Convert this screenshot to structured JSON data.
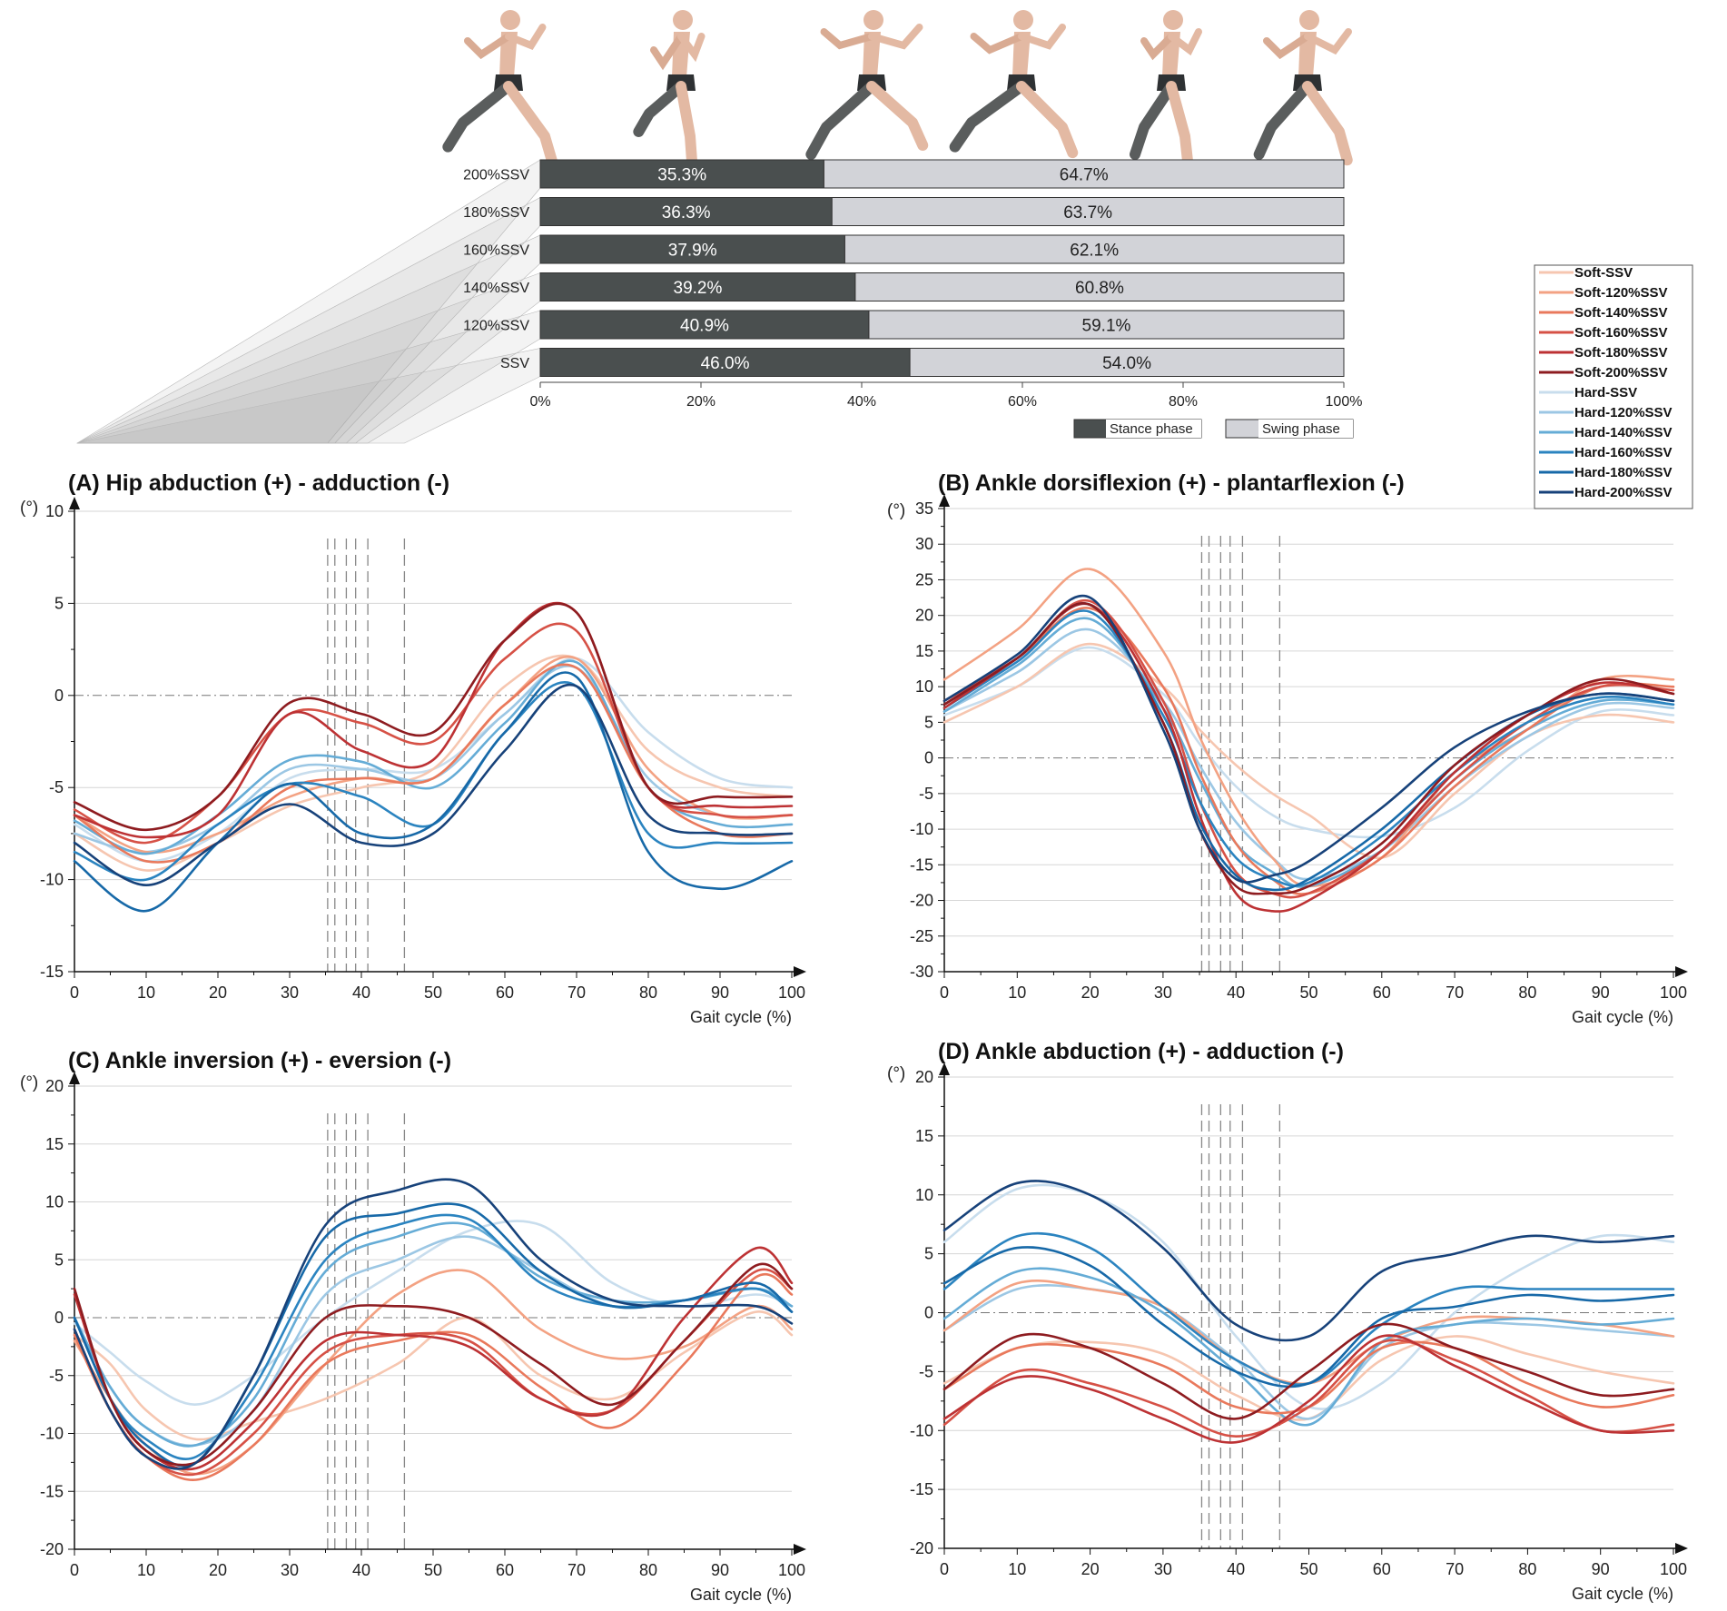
{
  "colors": {
    "soft": [
      "#f6c6b0",
      "#f3a283",
      "#e9795c",
      "#d65146",
      "#bd3234",
      "#8e1c20"
    ],
    "hard": [
      "#c8dded",
      "#9cc7e4",
      "#65acd6",
      "#2b84c0",
      "#1769a8",
      "#17427a"
    ],
    "stance": "#4a4f4f",
    "swing": "#d2d3d8"
  },
  "chart_data": [
    {
      "type": "bar",
      "id": "phase",
      "categories": [
        "200%SSV",
        "180%SSV",
        "160%SSV",
        "140%SSV",
        "120%SSV",
        "SSV"
      ],
      "series": [
        {
          "name": "Stance phase",
          "values": [
            35.3,
            36.3,
            37.9,
            39.2,
            40.9,
            46.0
          ],
          "labels": [
            "35.3%",
            "36.3%",
            "37.9%",
            "39.2%",
            "40.9%",
            "46.0%"
          ]
        },
        {
          "name": "Swing phase",
          "values": [
            64.7,
            63.7,
            62.1,
            60.8,
            59.1,
            54.0
          ],
          "labels": [
            "64.7%",
            "63.7%",
            "62.1%",
            "60.8%",
            "59.1%",
            "54.0%"
          ]
        }
      ],
      "xticks": [
        "0%",
        "20%",
        "40%",
        "60%",
        "80%",
        "100%"
      ],
      "legend": [
        "Stance phase",
        "Swing phase"
      ]
    },
    {
      "type": "line",
      "id": "A",
      "title": "(A) Hip abduction (+) - adduction (-)",
      "ylabel": "(°)",
      "xlabel": "Gait cycle (%)",
      "ylim": [
        -15,
        10
      ],
      "yticks": [
        -15,
        -10,
        -5,
        0,
        5,
        10
      ],
      "xticks": [
        0,
        10,
        20,
        30,
        40,
        50,
        60,
        70,
        80,
        90,
        100
      ],
      "stance_ends": [
        35.3,
        36.3,
        37.9,
        39.2,
        40.9,
        46.0
      ],
      "x": [
        0,
        10,
        20,
        30,
        40,
        50,
        60,
        70,
        80,
        90,
        100
      ],
      "series": [
        {
          "name": "Soft-SSV",
          "values": [
            -7.5,
            -9.5,
            -8.0,
            -6.0,
            -5.0,
            -4.0,
            0.5,
            2.0,
            -3.0,
            -5.0,
            -5.5
          ]
        },
        {
          "name": "Soft-120%SSV",
          "values": [
            -6.5,
            -8.5,
            -7.5,
            -5.5,
            -4.5,
            -4.5,
            -0.5,
            2.0,
            -4.0,
            -6.5,
            -6.5
          ]
        },
        {
          "name": "Soft-140%SSV",
          "values": [
            -6.5,
            -9.0,
            -8.0,
            -5.0,
            -4.5,
            -4.5,
            -0.5,
            1.5,
            -5.0,
            -7.5,
            -7.5
          ]
        },
        {
          "name": "Soft-160%SSV",
          "values": [
            -6.2,
            -8.0,
            -5.5,
            -1.0,
            -1.5,
            -2.5,
            2.0,
            3.5,
            -5.0,
            -6.5,
            -6.5
          ]
        },
        {
          "name": "Soft-180%SSV",
          "values": [
            -6.5,
            -7.7,
            -6.5,
            -1.0,
            -3.0,
            -3.5,
            3.0,
            4.5,
            -5.0,
            -6.0,
            -6.0
          ]
        },
        {
          "name": "Soft-200%SSV",
          "values": [
            -5.8,
            -7.3,
            -5.5,
            -0.4,
            -1.0,
            -2.0,
            3.0,
            4.5,
            -5.0,
            -5.5,
            -5.5
          ]
        },
        {
          "name": "Hard-SSV",
          "values": [
            -7.0,
            -9.0,
            -7.5,
            -4.5,
            -4.0,
            -4.0,
            -1.0,
            2.0,
            -2.0,
            -4.5,
            -5.0
          ]
        },
        {
          "name": "Hard-120%SSV",
          "values": [
            -7.5,
            -8.5,
            -7.0,
            -4.0,
            -4.0,
            -4.5,
            -1.0,
            1.5,
            -4.5,
            -6.5,
            -6.5
          ]
        },
        {
          "name": "Hard-140%SSV",
          "values": [
            -6.8,
            -8.6,
            -6.5,
            -3.5,
            -3.6,
            -5.0,
            -1.5,
            1.8,
            -5.0,
            -7.0,
            -7.0
          ]
        },
        {
          "name": "Hard-160%SSV",
          "values": [
            -8.5,
            -10.0,
            -7.0,
            -4.8,
            -5.5,
            -7.0,
            -2.0,
            0.5,
            -7.5,
            -8.0,
            -8.0
          ]
        },
        {
          "name": "Hard-180%SSV",
          "values": [
            -9.0,
            -11.7,
            -8.0,
            -4.8,
            -7.5,
            -7.0,
            -2.0,
            1.0,
            -8.5,
            -10.5,
            -9.0
          ]
        },
        {
          "name": "Hard-200%SSV",
          "values": [
            -8.0,
            -10.3,
            -8.0,
            -5.9,
            -8.0,
            -7.5,
            -3.0,
            0.5,
            -6.5,
            -7.5,
            -7.5
          ]
        }
      ]
    },
    {
      "type": "line",
      "id": "B",
      "title": "(B) Ankle dorsiflexion (+) - plantarflexion (-)",
      "ylabel": "(°)",
      "xlabel": "Gait cycle (%)",
      "ylim": [
        -30,
        35
      ],
      "yticks": [
        -30,
        -25,
        -20,
        -15,
        -10,
        -5,
        0,
        5,
        10,
        15,
        20,
        25,
        30,
        35
      ],
      "xticks": [
        0,
        10,
        20,
        30,
        40,
        50,
        60,
        70,
        80,
        90,
        100
      ],
      "stance_ends": [
        35.3,
        36.3,
        37.9,
        39.2,
        40.9,
        46.0
      ],
      "x": [
        0,
        10,
        20,
        30,
        35,
        40,
        45,
        50,
        60,
        70,
        80,
        90,
        100
      ],
      "series": [
        {
          "name": "Soft-SSV",
          "values": [
            5.0,
            10.0,
            16.0,
            10.0,
            4.0,
            -1.0,
            -5.0,
            -8.0,
            -14.0,
            -5.0,
            3.0,
            6.0,
            5.0
          ]
        },
        {
          "name": "Soft-120%SSV",
          "values": [
            11.0,
            18.0,
            26.5,
            15.0,
            3.0,
            -7.0,
            -14.0,
            -18.0,
            -14.0,
            -2.0,
            4.0,
            11.0,
            11.0
          ]
        },
        {
          "name": "Soft-140%SSV",
          "values": [
            8.0,
            14.0,
            21.0,
            10.0,
            -2.0,
            -12.0,
            -17.0,
            -19.0,
            -14.0,
            -4.0,
            4.0,
            10.0,
            10.0
          ]
        },
        {
          "name": "Soft-160%SSV",
          "values": [
            8.0,
            14.0,
            22.0,
            8.0,
            -6.0,
            -16.0,
            -19.0,
            -19.0,
            -13.0,
            -3.0,
            5.0,
            10.0,
            9.5
          ]
        },
        {
          "name": "Soft-180%SSV",
          "values": [
            7.0,
            14.0,
            21.5,
            7.0,
            -8.0,
            -19.0,
            -21.5,
            -20.0,
            -13.0,
            -2.0,
            6.0,
            10.5,
            9.0
          ]
        },
        {
          "name": "Soft-200%SSV",
          "values": [
            7.5,
            14.0,
            21.5,
            5.0,
            -10.0,
            -18.0,
            -19.0,
            -18.0,
            -12.0,
            -1.0,
            6.0,
            11.0,
            9.0
          ]
        },
        {
          "name": "Hard-SSV",
          "values": [
            6.0,
            10.0,
            15.5,
            9.0,
            2.0,
            -4.0,
            -8.0,
            -10.0,
            -11.0,
            -7.0,
            1.0,
            6.5,
            6.0
          ]
        },
        {
          "name": "Hard-120%SSV",
          "values": [
            6.5,
            12.0,
            18.0,
            8.0,
            -1.0,
            -9.0,
            -14.0,
            -17.0,
            -13.0,
            -4.0,
            3.0,
            7.5,
            7.0
          ]
        },
        {
          "name": "Hard-140%SSV",
          "values": [
            6.5,
            13.0,
            19.5,
            7.0,
            -3.0,
            -12.0,
            -16.0,
            -18.0,
            -13.0,
            -3.0,
            4.0,
            8.0,
            7.5
          ]
        },
        {
          "name": "Hard-160%SSV",
          "values": [
            7.0,
            13.5,
            20.5,
            6.0,
            -6.0,
            -14.0,
            -17.0,
            -17.5,
            -11.0,
            -2.0,
            5.0,
            8.5,
            7.5
          ]
        },
        {
          "name": "Hard-180%SSV",
          "values": [
            7.5,
            14.0,
            21.5,
            5.0,
            -9.0,
            -16.5,
            -18.5,
            -17.0,
            -10.0,
            -1.0,
            6.0,
            9.0,
            8.0
          ]
        },
        {
          "name": "Hard-200%SSV",
          "values": [
            8.0,
            14.5,
            22.5,
            4.0,
            -10.0,
            -17.0,
            -16.5,
            -14.5,
            -7.0,
            1.5,
            6.5,
            9.0,
            8.0
          ]
        }
      ]
    },
    {
      "type": "line",
      "id": "C",
      "title": "(C) Ankle inversion (+) - eversion (-)",
      "ylabel": "(°)",
      "xlabel": "Gait cycle (%)",
      "ylim": [
        -20,
        20
      ],
      "yticks": [
        -20,
        -15,
        -10,
        -5,
        0,
        5,
        10,
        15,
        20
      ],
      "xticks": [
        0,
        10,
        20,
        30,
        40,
        50,
        60,
        70,
        80,
        90,
        100
      ],
      "stance_ends": [
        35.3,
        36.3,
        37.9,
        39.2,
        40.9,
        46.0
      ],
      "x": [
        0,
        5,
        10,
        17,
        25,
        35,
        45,
        55,
        65,
        75,
        85,
        95,
        100
      ],
      "series": [
        {
          "name": "Soft-SSV",
          "values": [
            -1.5,
            -4.0,
            -8.0,
            -10.5,
            -9.0,
            -7.0,
            -4.0,
            0.0,
            -5.0,
            -7.0,
            -3.0,
            0.5,
            -1.5
          ]
        },
        {
          "name": "Soft-120%SSV",
          "values": [
            -2.0,
            -7.0,
            -11.0,
            -13.5,
            -11.0,
            -4.0,
            2.0,
            4.0,
            -1.0,
            -3.5,
            -2.5,
            1.0,
            -1.0
          ]
        },
        {
          "name": "Soft-140%SSV",
          "values": [
            -1.5,
            -8.0,
            -12.0,
            -14.0,
            -11.0,
            -4.0,
            -2.0,
            -1.5,
            -6.0,
            -9.5,
            -4.0,
            3.5,
            2.0
          ]
        },
        {
          "name": "Soft-160%SSV",
          "values": [
            -1.0,
            -8.0,
            -12.0,
            -13.5,
            -10.0,
            -3.0,
            -1.5,
            -2.0,
            -7.0,
            -8.0,
            -2.0,
            4.0,
            2.5
          ]
        },
        {
          "name": "Soft-180%SSV",
          "values": [
            2.0,
            -7.0,
            -11.5,
            -13.0,
            -9.0,
            -2.0,
            -1.5,
            -2.5,
            -7.0,
            -8.0,
            0.0,
            6.0,
            3.0
          ]
        },
        {
          "name": "Soft-200%SSV",
          "values": [
            2.5,
            -7.0,
            -11.5,
            -12.5,
            -8.0,
            0.0,
            1.0,
            0.0,
            -4.0,
            -7.5,
            -2.0,
            4.5,
            2.5
          ]
        },
        {
          "name": "Hard-SSV",
          "values": [
            -0.5,
            -3.0,
            -5.5,
            -7.5,
            -5.0,
            0.0,
            4.0,
            7.5,
            8.0,
            3.0,
            1.0,
            2.0,
            1.0
          ]
        },
        {
          "name": "Hard-120%SSV",
          "values": [
            0.0,
            -6.0,
            -9.5,
            -11.0,
            -8.0,
            2.0,
            5.0,
            7.0,
            4.0,
            1.0,
            1.5,
            2.5,
            1.0
          ]
        },
        {
          "name": "Hard-140%SSV",
          "values": [
            0.0,
            -6.0,
            -9.5,
            -11.0,
            -7.0,
            4.0,
            7.0,
            8.0,
            3.5,
            1.5,
            1.5,
            2.5,
            1.0
          ]
        },
        {
          "name": "Hard-160%SSV",
          "values": [
            0.0,
            -7.0,
            -10.5,
            -12.0,
            -6.0,
            5.0,
            8.0,
            8.5,
            3.0,
            1.0,
            1.5,
            2.5,
            0.5
          ]
        },
        {
          "name": "Hard-180%SSV",
          "values": [
            0.0,
            -7.0,
            -11.0,
            -12.5,
            -5.0,
            7.0,
            9.0,
            9.5,
            4.0,
            1.0,
            1.5,
            3.0,
            0.5
          ]
        },
        {
          "name": "Hard-200%SSV",
          "values": [
            -1.0,
            -8.0,
            -12.0,
            -12.5,
            -5.0,
            8.0,
            11.0,
            11.5,
            5.0,
            1.5,
            1.0,
            1.0,
            -0.5
          ]
        }
      ]
    },
    {
      "type": "line",
      "id": "D",
      "title": "(D) Ankle abduction (+) - adduction (-)",
      "ylabel": "(°)",
      "xlabel": "Gait cycle (%)",
      "ylim": [
        -20,
        20
      ],
      "yticks": [
        -20,
        -15,
        -10,
        -5,
        0,
        5,
        10,
        15,
        20
      ],
      "xticks": [
        0,
        10,
        20,
        30,
        40,
        50,
        60,
        70,
        80,
        90,
        100
      ],
      "stance_ends": [
        35.3,
        36.3,
        37.9,
        39.2,
        40.9,
        46.0
      ],
      "x": [
        0,
        10,
        20,
        30,
        40,
        50,
        60,
        70,
        80,
        90,
        100
      ],
      "series": [
        {
          "name": "Soft-SSV",
          "values": [
            -6.0,
            -3.0,
            -2.5,
            -3.5,
            -7.0,
            -9.0,
            -4.0,
            -2.0,
            -3.5,
            -5.0,
            -6.0
          ]
        },
        {
          "name": "Soft-120%SSV",
          "values": [
            -1.5,
            2.5,
            2.0,
            0.5,
            -4.0,
            -6.0,
            -2.5,
            -0.5,
            -0.5,
            -1.0,
            -2.0
          ]
        },
        {
          "name": "Soft-140%SSV",
          "values": [
            -6.5,
            -3.0,
            -3.0,
            -4.5,
            -8.0,
            -8.0,
            -3.0,
            -3.0,
            -6.0,
            -8.0,
            -7.0
          ]
        },
        {
          "name": "Soft-160%SSV",
          "values": [
            -9.5,
            -5.0,
            -6.0,
            -8.0,
            -10.5,
            -8.0,
            -2.5,
            -4.0,
            -7.0,
            -10.0,
            -9.5
          ]
        },
        {
          "name": "Soft-180%SSV",
          "values": [
            -9.0,
            -5.5,
            -6.5,
            -9.0,
            -11.0,
            -7.5,
            -2.0,
            -4.5,
            -7.5,
            -10.0,
            -10.0
          ]
        },
        {
          "name": "Soft-200%SSV",
          "values": [
            -6.5,
            -2.0,
            -3.0,
            -6.0,
            -9.0,
            -5.0,
            -1.0,
            -3.0,
            -5.0,
            -7.0,
            -6.5
          ]
        },
        {
          "name": "Hard-SSV",
          "values": [
            6.0,
            10.5,
            10.0,
            6.0,
            -2.0,
            -8.0,
            -6.0,
            0.0,
            4.0,
            6.5,
            6.0
          ]
        },
        {
          "name": "Hard-120%SSV",
          "values": [
            -1.5,
            2.0,
            2.0,
            0.5,
            -4.0,
            -9.0,
            -3.0,
            -1.0,
            -1.0,
            -1.5,
            -2.0
          ]
        },
        {
          "name": "Hard-140%SSV",
          "values": [
            -0.5,
            3.5,
            3.0,
            0.0,
            -5.0,
            -9.5,
            -2.5,
            -1.0,
            -0.5,
            -1.0,
            -0.5
          ]
        },
        {
          "name": "Hard-160%SSV",
          "values": [
            2.0,
            6.5,
            5.5,
            0.5,
            -4.0,
            -6.0,
            -1.0,
            2.0,
            2.0,
            2.0,
            2.0
          ]
        },
        {
          "name": "Hard-180%SSV",
          "values": [
            2.5,
            5.5,
            4.0,
            -1.0,
            -5.0,
            -6.0,
            -0.5,
            0.5,
            1.5,
            1.0,
            1.5
          ]
        },
        {
          "name": "Hard-200%SSV",
          "values": [
            7.0,
            11.0,
            10.0,
            5.5,
            -1.0,
            -2.0,
            3.5,
            5.0,
            6.5,
            6.0,
            6.5
          ]
        }
      ]
    }
  ],
  "legend": [
    "Soft-SSV",
    "Soft-120%SSV",
    "Soft-140%SSV",
    "Soft-160%SSV",
    "Soft-180%SSV",
    "Soft-200%SSV",
    "Hard-SSV",
    "Hard-120%SSV",
    "Hard-140%SSV",
    "Hard-160%SSV",
    "Hard-180%SSV",
    "Hard-200%SSV"
  ]
}
